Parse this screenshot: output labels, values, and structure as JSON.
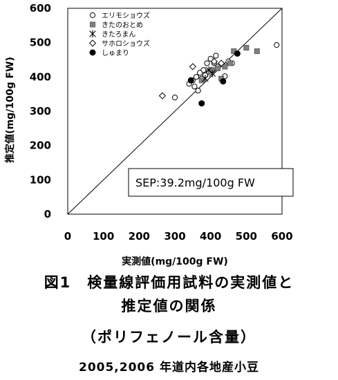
{
  "chart_data": {
    "type": "scatter",
    "xlabel": "実測値(mg/100g FW)",
    "ylabel": "推定値(mg/100g FW)",
    "xlim": [
      0,
      600
    ],
    "ylim": [
      0,
      600
    ],
    "x_ticks": [
      0,
      100,
      200,
      300,
      400,
      500,
      600
    ],
    "y_ticks": [
      0,
      100,
      200,
      300,
      400,
      500,
      600
    ],
    "reference_line": "y = x",
    "grid": false,
    "legend_position": "top-left",
    "annotation": "SEP:39.2mg/100g FW",
    "series": [
      {
        "name": "エリモショウズ",
        "marker": "open-circle",
        "points": [
          [
            585,
            493
          ],
          [
            415,
            462
          ],
          [
            400,
            453
          ],
          [
            390,
            440
          ],
          [
            410,
            440
          ],
          [
            420,
            430
          ],
          [
            380,
            420
          ],
          [
            395,
            415
          ],
          [
            370,
            412
          ],
          [
            385,
            405
          ],
          [
            360,
            400
          ],
          [
            375,
            395
          ],
          [
            350,
            390
          ],
          [
            340,
            380
          ],
          [
            355,
            372
          ],
          [
            365,
            360
          ],
          [
            300,
            340
          ],
          [
            440,
            402
          ],
          [
            450,
            445
          ],
          [
            460,
            440
          ]
        ]
      },
      {
        "name": "きたのおとめ",
        "marker": "gray-square",
        "points": [
          [
            500,
            485
          ],
          [
            530,
            475
          ],
          [
            465,
            475
          ],
          [
            440,
            430
          ],
          [
            455,
            440
          ],
          [
            420,
            425
          ],
          [
            430,
            395
          ],
          [
            405,
            420
          ],
          [
            375,
            390
          ]
        ]
      },
      {
        "name": "きたろまん",
        "marker": "asterisk",
        "points": [
          [
            405,
            410
          ],
          [
            395,
            420
          ],
          [
            385,
            395
          ]
        ]
      },
      {
        "name": "サホロショウズ",
        "marker": "open-diamond",
        "points": [
          [
            265,
            345
          ],
          [
            410,
            445
          ],
          [
            430,
            440
          ],
          [
            350,
            430
          ]
        ]
      },
      {
        "name": "しゅまり",
        "marker": "filled-circle",
        "points": [
          [
            475,
            468
          ],
          [
            435,
            387
          ],
          [
            375,
            323
          ],
          [
            345,
            390
          ]
        ]
      }
    ]
  },
  "captions": {
    "line1": "図1　検量線評価用試料の実測値と",
    "line2": "推定値の関係",
    "line3": "（ポリフェノール含量）",
    "line4": "2005,2006 年道内各地産小豆"
  }
}
